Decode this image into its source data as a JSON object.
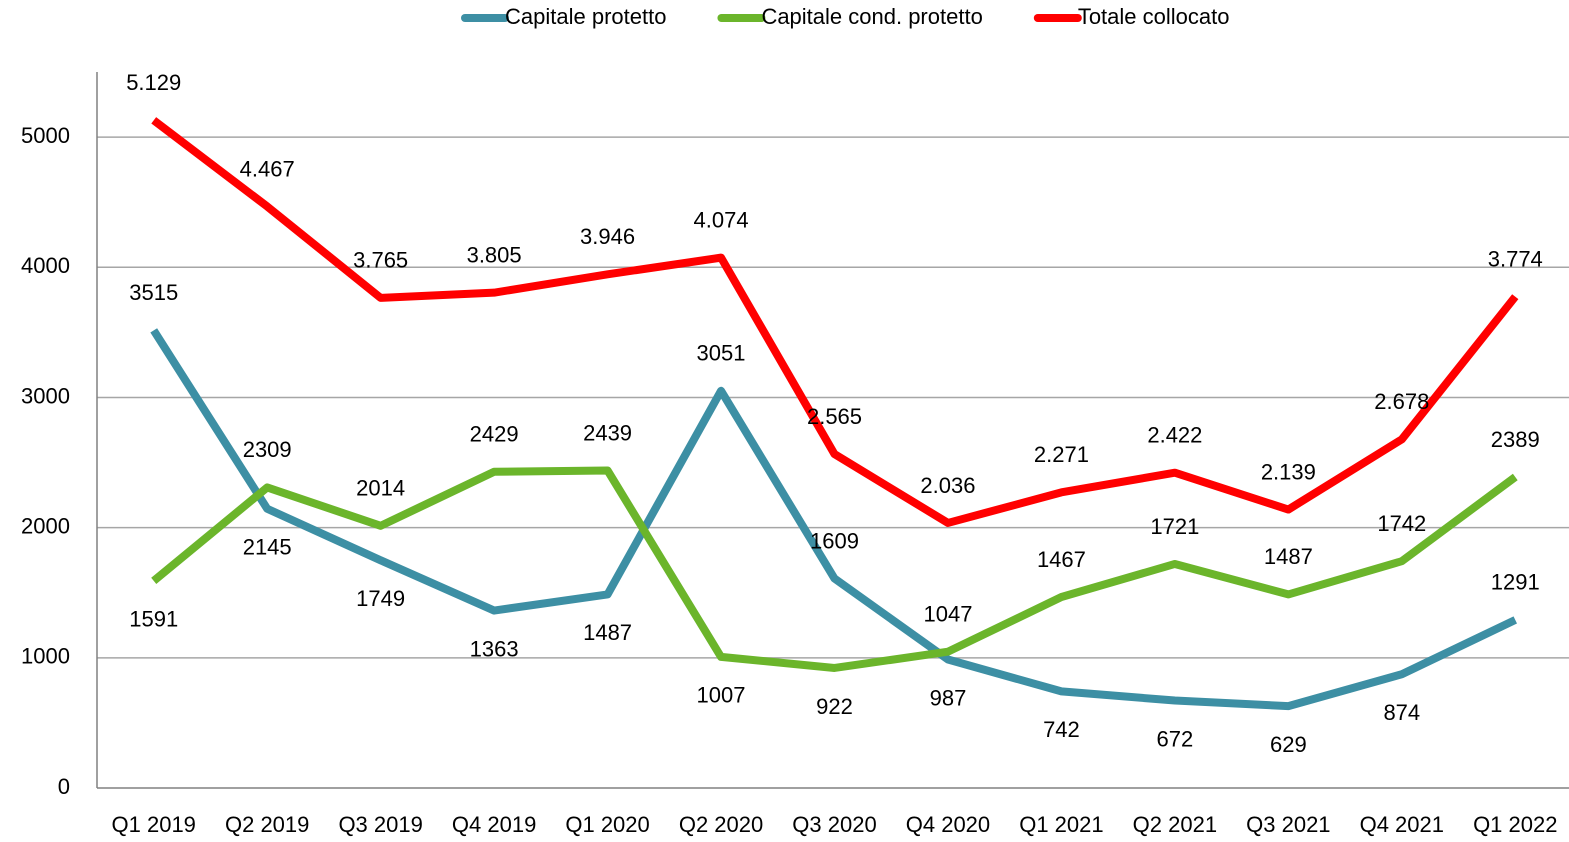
{
  "chart_data": {
    "type": "line",
    "categories": [
      "Q1 2019",
      "Q2 2019",
      "Q3 2019",
      "Q4 2019",
      "Q1 2020",
      "Q2 2020",
      "Q3 2020",
      "Q4 2020",
      "Q1 2021",
      "Q2 2021",
      "Q3 2021",
      "Q4 2021",
      "Q1 2022"
    ],
    "series": [
      {
        "name": "Capitale protetto",
        "color": "#3d8fa4",
        "values": [
          3515,
          2145,
          1749,
          1363,
          1487,
          3051,
          1609,
          987,
          742,
          672,
          629,
          874,
          1291
        ]
      },
      {
        "name": "Capitale cond. protetto",
        "color": "#6bb52b",
        "values": [
          1591,
          2309,
          2014,
          2429,
          2439,
          1007,
          922,
          1047,
          1467,
          1721,
          1487,
          1742,
          2389
        ]
      },
      {
        "name": "Totale collocato",
        "color": "#ff0000",
        "values": [
          5129,
          4467,
          3765,
          3805,
          3946,
          4074,
          2565,
          2036,
          2271,
          2422,
          2139,
          2678,
          3774
        ],
        "value_labels": [
          "5.129",
          "4.467",
          "3.765",
          "3.805",
          "3.946",
          "4.074",
          "2.565",
          "2.036",
          "2.271",
          "2.422",
          "2.139",
          "2.678",
          "3.774"
        ]
      }
    ],
    "ylim": [
      0,
      5500
    ],
    "yticks": [
      0,
      1000,
      2000,
      3000,
      4000,
      5000
    ],
    "grid": true,
    "legend": "top"
  }
}
